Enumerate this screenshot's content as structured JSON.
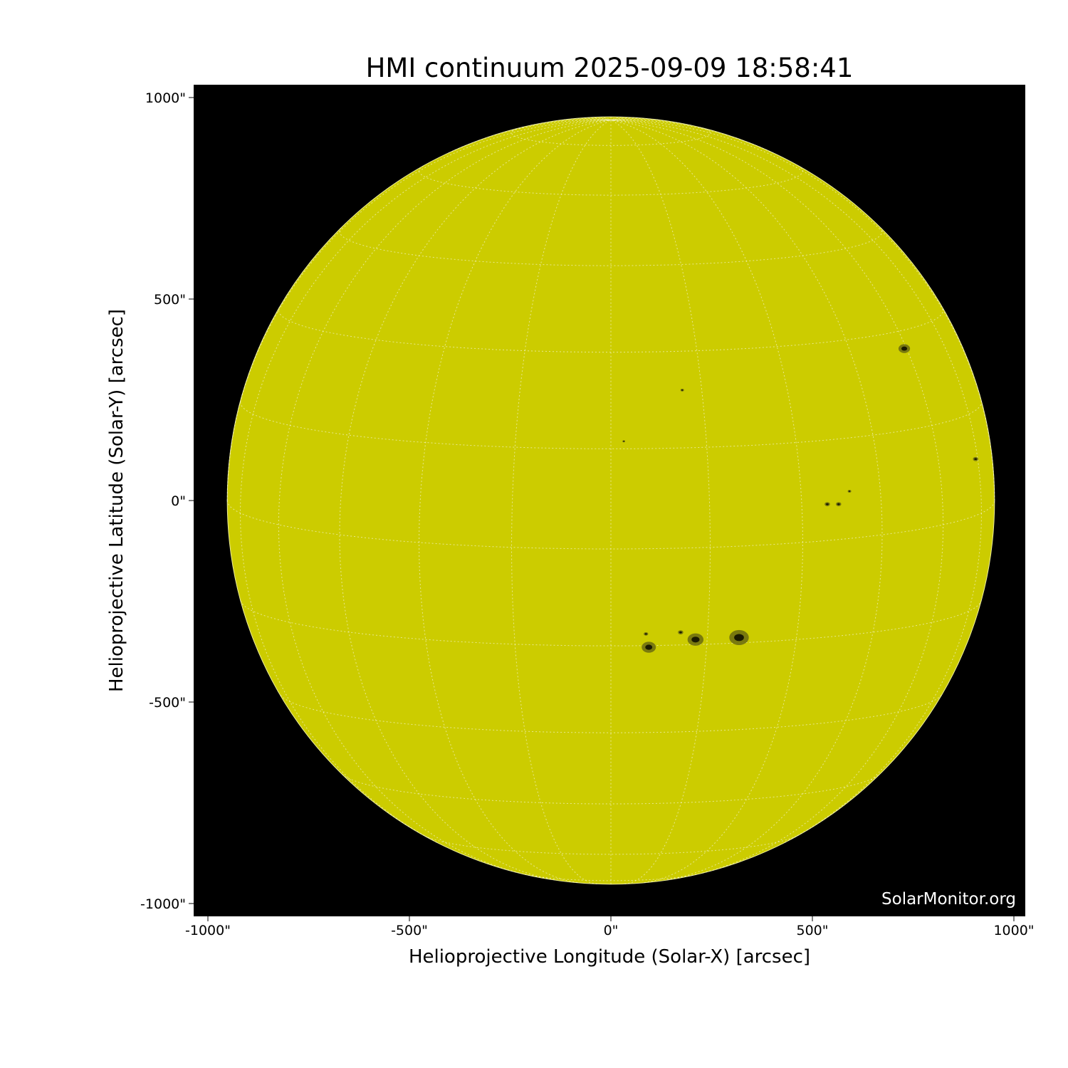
{
  "title": "HMI continuum 2025-09-09 18:58:41",
  "watermark": "SolarMonitor.org",
  "colors": {
    "disk": "#cccc00",
    "background": "#000000",
    "spot": "#1a1a00",
    "grid": "#ffffff"
  },
  "chart_data": {
    "type": "heatmap",
    "title": "HMI continuum 2025-09-09 18:58:41",
    "xlabel": "Helioprojective Longitude (Solar-X) [arcsec]",
    "ylabel": "Helioprojective Latitude (Solar-Y) [arcsec]",
    "xlim": [
      -1035,
      1028
    ],
    "ylim": [
      -1035,
      1028
    ],
    "xticks": [
      {
        "v": -1000,
        "label": "-1000\""
      },
      {
        "v": -500,
        "label": "-500\""
      },
      {
        "v": 0,
        "label": "0\""
      },
      {
        "v": 500,
        "label": "500\""
      },
      {
        "v": 1000,
        "label": "1000\""
      }
    ],
    "yticks": [
      {
        "v": 1000,
        "label": "1000\""
      },
      {
        "v": 500,
        "label": "500\""
      },
      {
        "v": 0,
        "label": "0\""
      },
      {
        "v": -500,
        "label": "-500\""
      },
      {
        "v": -1000,
        "label": "-1000\""
      }
    ],
    "solar_radius_arcsec": 952,
    "grid_spacing_deg": 15,
    "sunspots": [
      {
        "x": 318,
        "y": -340,
        "size": 22
      },
      {
        "x": 210,
        "y": -345,
        "size": 18
      },
      {
        "x": 94,
        "y": -364,
        "size": 16
      },
      {
        "x": 173,
        "y": -327,
        "size": 6
      },
      {
        "x": 87,
        "y": -331,
        "size": 5
      },
      {
        "x": 728,
        "y": 377,
        "size": 13
      },
      {
        "x": 537,
        "y": -9,
        "size": 6
      },
      {
        "x": 565,
        "y": -9,
        "size": 6
      },
      {
        "x": 592,
        "y": 23,
        "size": 4
      },
      {
        "x": 905,
        "y": 103,
        "size": 6
      },
      {
        "x": 177,
        "y": 274,
        "size": 4
      },
      {
        "x": 32,
        "y": 147,
        "size": 3
      }
    ]
  }
}
